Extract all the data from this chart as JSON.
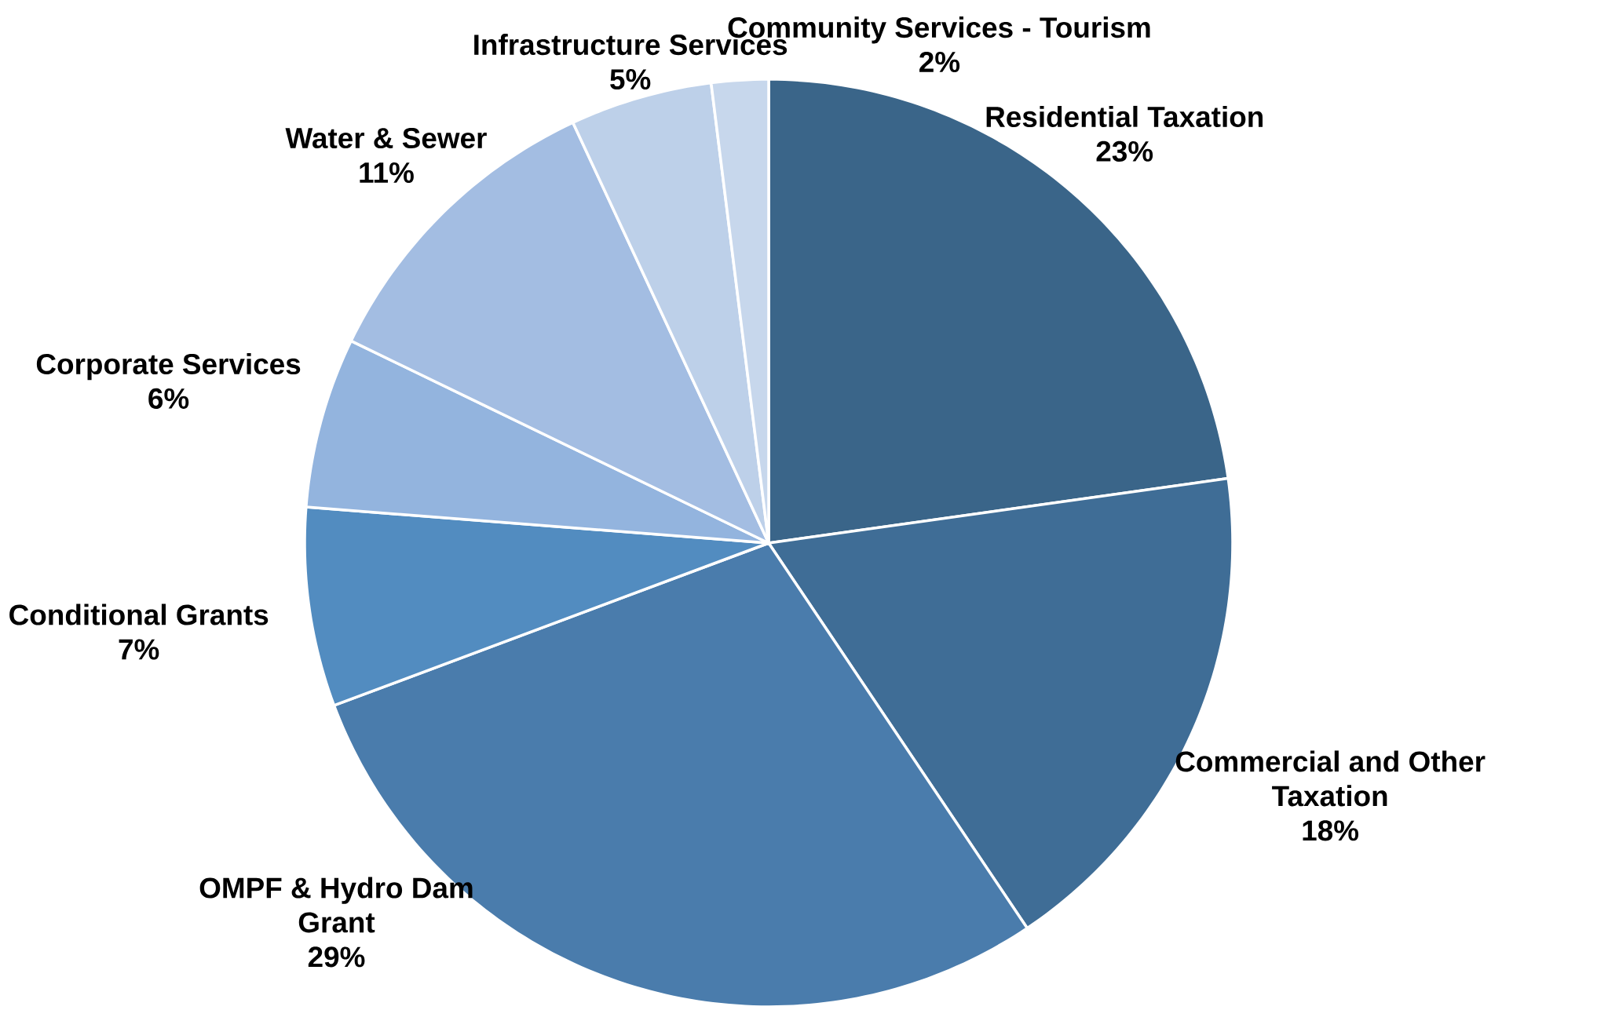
{
  "chart_data": {
    "type": "pie",
    "categories": [
      "Residential Taxation",
      "Commercial and Other Taxation",
      "OMPF & Hydro Dam Grant",
      "Conditional Grants",
      "Corporate Services",
      "Water & Sewer",
      "Infrastructure Services",
      "Community Services - Tourism"
    ],
    "values": [
      23,
      18,
      29,
      7,
      6,
      11,
      5,
      2
    ],
    "value_labels": [
      "23%",
      "18%",
      "29%",
      "7%",
      "6%",
      "11%",
      "5%",
      "2%"
    ],
    "colors": [
      "#3a6589",
      "#3f6d96",
      "#4a7cac",
      "#528cc0",
      "#93b4de",
      "#a3bde2",
      "#bdd0e9",
      "#c7d7ec"
    ]
  }
}
